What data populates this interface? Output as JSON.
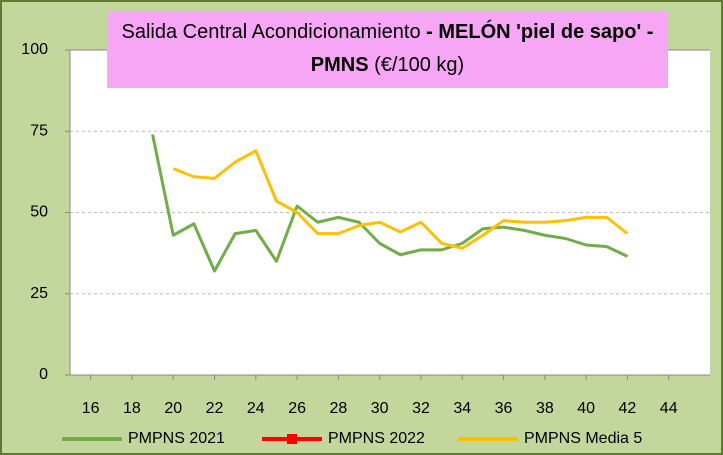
{
  "chart_data": {
    "type": "line",
    "title": [
      "Salida Central Acondicionamiento",
      "- MELÓN 'piel de sapo' - PMNS",
      "(€/100 kg)"
    ],
    "x": [
      19,
      20,
      21,
      22,
      23,
      24,
      25,
      26,
      27,
      28,
      29,
      30,
      31,
      32,
      33,
      34,
      35,
      36,
      37,
      38,
      39,
      40,
      41,
      42
    ],
    "series": [
      {
        "name": "PMPNS 2021",
        "color": "#70ad47",
        "values": [
          74,
          43,
          46.5,
          32,
          43.5,
          44.5,
          35,
          52,
          47,
          48.5,
          47,
          40.5,
          37,
          38.5,
          38.5,
          40.5,
          45,
          45.5,
          44.5,
          43,
          42,
          40,
          39.5,
          36.5
        ]
      },
      {
        "name": "PMPNS 2022",
        "color": "#ff0000",
        "values": [
          null,
          null,
          null,
          null,
          null,
          null,
          null,
          null,
          null,
          null,
          null,
          null,
          null,
          null,
          null,
          null,
          null,
          null,
          null,
          null,
          null,
          null,
          null,
          null
        ]
      },
      {
        "name": "PMPNS Media 5",
        "color": "#ffc000",
        "values": [
          null,
          63.5,
          61,
          60.5,
          65.5,
          69,
          53.5,
          50,
          43.5,
          43.5,
          46,
          47,
          44,
          47,
          40.5,
          39,
          43,
          47.5,
          47,
          47,
          47.5,
          48.5,
          48.5,
          43.5
        ]
      }
    ],
    "xlim": [
      15,
      46
    ],
    "xticks": [
      16,
      18,
      20,
      22,
      24,
      26,
      28,
      30,
      32,
      34,
      36,
      38,
      40,
      42,
      44
    ],
    "ylim": [
      0,
      100
    ],
    "yticks": [
      0,
      25,
      50,
      75,
      100
    ],
    "grid": true
  }
}
